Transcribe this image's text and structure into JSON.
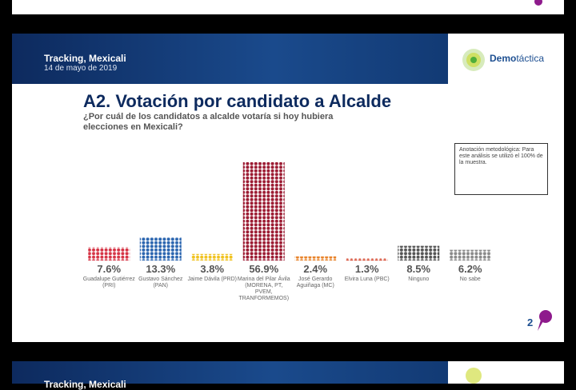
{
  "header": {
    "title": "Tracking, Mexicali",
    "date": "14 de mayo de 2019"
  },
  "logo": {
    "left": "Demo",
    "right": "táctica"
  },
  "chart_data": {
    "type": "bar",
    "title": "A2. Votación por candidato a Alcalde",
    "subtitle": "¿Por cuál de los candidatos a alcalde votaría si hoy hubiera elecciones en Mexicali?",
    "categories": [
      "Guadalupe Gutiérrez (PRI)",
      "Gustavo Sánchez (PAN)",
      "Jaime Dávila (PRD)",
      "Marina del Pilar Ávila (MORENA, PT, PVEM, TRANFORMEMOS)",
      "José Gerardo Aguiñaga (MC)",
      "Elvira Luna (PBC)",
      "Ninguno",
      "No sabe"
    ],
    "values": [
      7.6,
      13.3,
      3.8,
      56.9,
      2.4,
      1.3,
      8.5,
      6.2
    ],
    "value_labels": [
      "7.6%",
      "13.3%",
      "3.8%",
      "56.9%",
      "2.4%",
      "1.3%",
      "8.5%",
      "6.2%"
    ],
    "colors": [
      "#d63546",
      "#2c66b0",
      "#f0c21f",
      "#9c1c33",
      "#e8842c",
      "#d4432a",
      "#555555",
      "#8a8a8a"
    ],
    "annotation": "Anotación metodológica: Para este análisis se utilizó el 100% de la muestra."
  },
  "page_number": "2",
  "next_slide": {
    "title": "Tracking, Mexicali"
  }
}
